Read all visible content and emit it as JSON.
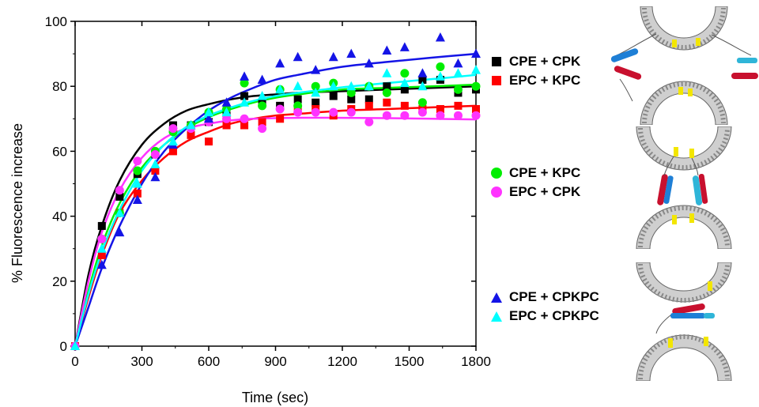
{
  "chart_data": {
    "type": "scatter",
    "xlabel": "Time (sec)",
    "ylabel": "% Fluorescence increase",
    "xlim": [
      0,
      1800
    ],
    "ylim": [
      0,
      100
    ],
    "xticks": [
      0,
      300,
      600,
      900,
      1200,
      1500,
      1800
    ],
    "yticks": [
      0,
      20,
      40,
      60,
      80,
      100
    ],
    "grid": false,
    "series": [
      {
        "name": "CPE + CPK",
        "color": "#000000",
        "marker": "square",
        "legend_group": 1,
        "points": [
          [
            0,
            0
          ],
          [
            120,
            37
          ],
          [
            200,
            46
          ],
          [
            280,
            53
          ],
          [
            360,
            59
          ],
          [
            440,
            68
          ],
          [
            520,
            68
          ],
          [
            600,
            69
          ],
          [
            680,
            71
          ],
          [
            760,
            77
          ],
          [
            840,
            75
          ],
          [
            920,
            74
          ],
          [
            1000,
            76
          ],
          [
            1080,
            75
          ],
          [
            1160,
            77
          ],
          [
            1240,
            76
          ],
          [
            1320,
            76
          ],
          [
            1400,
            80
          ],
          [
            1480,
            79
          ],
          [
            1560,
            82
          ],
          [
            1640,
            82
          ],
          [
            1720,
            78
          ],
          [
            1800,
            79
          ]
        ],
        "fit": [
          [
            0,
            0
          ],
          [
            60,
            22
          ],
          [
            120,
            37
          ],
          [
            200,
            51
          ],
          [
            300,
            62
          ],
          [
            400,
            68.5
          ],
          [
            500,
            72.5
          ],
          [
            600,
            74.5
          ],
          [
            700,
            76
          ],
          [
            800,
            77
          ],
          [
            900,
            77.5
          ],
          [
            1000,
            78
          ],
          [
            1200,
            78.5
          ],
          [
            1400,
            79
          ],
          [
            1600,
            79.5
          ],
          [
            1800,
            80
          ]
        ]
      },
      {
        "name": "EPC + KPC",
        "color": "#ff0000",
        "marker": "square",
        "legend_group": 1,
        "points": [
          [
            0,
            0
          ],
          [
            120,
            28
          ],
          [
            200,
            41
          ],
          [
            280,
            47
          ],
          [
            360,
            54
          ],
          [
            440,
            60
          ],
          [
            520,
            65
          ],
          [
            600,
            63
          ],
          [
            680,
            68
          ],
          [
            760,
            68
          ],
          [
            840,
            69
          ],
          [
            920,
            70
          ],
          [
            1000,
            73
          ],
          [
            1080,
            73
          ],
          [
            1160,
            71
          ],
          [
            1240,
            73
          ],
          [
            1320,
            74
          ],
          [
            1400,
            75
          ],
          [
            1480,
            74
          ],
          [
            1560,
            73
          ],
          [
            1640,
            73
          ],
          [
            1720,
            74
          ],
          [
            1800,
            73
          ]
        ],
        "fit": [
          [
            0,
            0
          ],
          [
            60,
            15
          ],
          [
            120,
            28
          ],
          [
            200,
            41
          ],
          [
            300,
            51
          ],
          [
            400,
            58
          ],
          [
            500,
            63
          ],
          [
            600,
            66
          ],
          [
            700,
            68.5
          ],
          [
            800,
            70
          ],
          [
            900,
            71
          ],
          [
            1000,
            71.5
          ],
          [
            1200,
            72.5
          ],
          [
            1400,
            73
          ],
          [
            1600,
            73.5
          ],
          [
            1800,
            74
          ]
        ]
      },
      {
        "name": "CPE + KPC",
        "color": "#00ee00",
        "marker": "circle",
        "legend_group": 2,
        "points": [
          [
            0,
            0
          ],
          [
            120,
            33
          ],
          [
            200,
            41
          ],
          [
            280,
            54
          ],
          [
            360,
            60
          ],
          [
            440,
            66
          ],
          [
            520,
            68
          ],
          [
            600,
            72
          ],
          [
            680,
            73
          ],
          [
            760,
            81
          ],
          [
            840,
            74
          ],
          [
            920,
            79
          ],
          [
            1000,
            74
          ],
          [
            1080,
            80
          ],
          [
            1160,
            81
          ],
          [
            1240,
            78
          ],
          [
            1320,
            80
          ],
          [
            1400,
            78
          ],
          [
            1480,
            84
          ],
          [
            1560,
            75
          ],
          [
            1640,
            86
          ],
          [
            1720,
            79
          ],
          [
            1800,
            80
          ]
        ],
        "fit": [
          [
            0,
            0
          ],
          [
            60,
            17
          ],
          [
            120,
            31
          ],
          [
            200,
            44
          ],
          [
            300,
            55
          ],
          [
            400,
            62
          ],
          [
            500,
            67
          ],
          [
            600,
            70.5
          ],
          [
            700,
            73
          ],
          [
            800,
            75
          ],
          [
            900,
            76.5
          ],
          [
            1000,
            77.5
          ],
          [
            1200,
            79
          ],
          [
            1400,
            79.5
          ],
          [
            1600,
            80
          ],
          [
            1800,
            80.5
          ]
        ]
      },
      {
        "name": "EPC + CPK",
        "color": "#ff33ff",
        "marker": "circle",
        "legend_group": 2,
        "points": [
          [
            0,
            0
          ],
          [
            120,
            33
          ],
          [
            200,
            48
          ],
          [
            280,
            57
          ],
          [
            360,
            59
          ],
          [
            440,
            67
          ],
          [
            520,
            67
          ],
          [
            600,
            69
          ],
          [
            680,
            70
          ],
          [
            760,
            70
          ],
          [
            840,
            67
          ],
          [
            920,
            73
          ],
          [
            1000,
            72
          ],
          [
            1080,
            72
          ],
          [
            1160,
            72
          ],
          [
            1240,
            72
          ],
          [
            1320,
            69
          ],
          [
            1400,
            71
          ],
          [
            1480,
            71
          ],
          [
            1560,
            72
          ],
          [
            1640,
            71
          ],
          [
            1720,
            71
          ],
          [
            1800,
            71
          ]
        ],
        "fit": [
          [
            0,
            0
          ],
          [
            60,
            20
          ],
          [
            120,
            35
          ],
          [
            200,
            48
          ],
          [
            300,
            58
          ],
          [
            400,
            64
          ],
          [
            500,
            67
          ],
          [
            600,
            68.5
          ],
          [
            700,
            69.5
          ],
          [
            800,
            70
          ],
          [
            900,
            70.2
          ],
          [
            1000,
            70.3
          ],
          [
            1200,
            70.3
          ],
          [
            1400,
            70.2
          ],
          [
            1600,
            70
          ],
          [
            1800,
            69.8
          ]
        ]
      },
      {
        "name": "CPE + CPKPC",
        "color": "#1414e6",
        "marker": "triangle",
        "legend_group": 3,
        "points": [
          [
            0,
            0
          ],
          [
            120,
            25
          ],
          [
            200,
            35
          ],
          [
            280,
            45
          ],
          [
            360,
            52
          ],
          [
            440,
            62
          ],
          [
            520,
            68
          ],
          [
            600,
            70
          ],
          [
            680,
            75
          ],
          [
            760,
            83
          ],
          [
            840,
            82
          ],
          [
            920,
            87
          ],
          [
            1000,
            89
          ],
          [
            1080,
            85
          ],
          [
            1160,
            89
          ],
          [
            1240,
            90
          ],
          [
            1320,
            87
          ],
          [
            1400,
            91
          ],
          [
            1480,
            92
          ],
          [
            1560,
            84
          ],
          [
            1640,
            95
          ],
          [
            1720,
            87
          ],
          [
            1800,
            90
          ]
        ],
        "fit": [
          [
            0,
            0
          ],
          [
            60,
            12
          ],
          [
            120,
            24
          ],
          [
            200,
            37
          ],
          [
            300,
            50
          ],
          [
            400,
            60
          ],
          [
            500,
            67
          ],
          [
            600,
            72.5
          ],
          [
            700,
            76.5
          ],
          [
            800,
            79.5
          ],
          [
            900,
            82
          ],
          [
            1000,
            83.5
          ],
          [
            1200,
            86
          ],
          [
            1400,
            87.5
          ],
          [
            1600,
            88.8
          ],
          [
            1800,
            90
          ]
        ]
      },
      {
        "name": "EPC + CPKPC",
        "color": "#00ffff",
        "marker": "triangle",
        "legend_group": 3,
        "points": [
          [
            0,
            0
          ],
          [
            120,
            30
          ],
          [
            200,
            41
          ],
          [
            280,
            50
          ],
          [
            360,
            56
          ],
          [
            440,
            63
          ],
          [
            520,
            68
          ],
          [
            600,
            72
          ],
          [
            680,
            72
          ],
          [
            760,
            75
          ],
          [
            840,
            77
          ],
          [
            920,
            79
          ],
          [
            1000,
            80
          ],
          [
            1080,
            78
          ],
          [
            1160,
            80
          ],
          [
            1240,
            80
          ],
          [
            1320,
            80
          ],
          [
            1400,
            84
          ],
          [
            1480,
            81
          ],
          [
            1560,
            80
          ],
          [
            1640,
            83
          ],
          [
            1720,
            84
          ],
          [
            1800,
            85
          ]
        ],
        "fit": [
          [
            0,
            0
          ],
          [
            60,
            16
          ],
          [
            120,
            29
          ],
          [
            200,
            42
          ],
          [
            300,
            54
          ],
          [
            400,
            62
          ],
          [
            500,
            67.5
          ],
          [
            600,
            71
          ],
          [
            700,
            73.5
          ],
          [
            800,
            75.5
          ],
          [
            900,
            77
          ],
          [
            1000,
            78
          ],
          [
            1200,
            79.7
          ],
          [
            1400,
            81
          ],
          [
            1600,
            82.2
          ],
          [
            1800,
            83.5
          ]
        ]
      }
    ]
  },
  "schematics": [
    {
      "icon": "membrane-fusion-schematic-icon",
      "groups": 1
    },
    {
      "icon": "membrane-fusion-schematic-icon",
      "groups": 2
    },
    {
      "icon": "membrane-fusion-schematic-icon",
      "groups": 3
    }
  ]
}
